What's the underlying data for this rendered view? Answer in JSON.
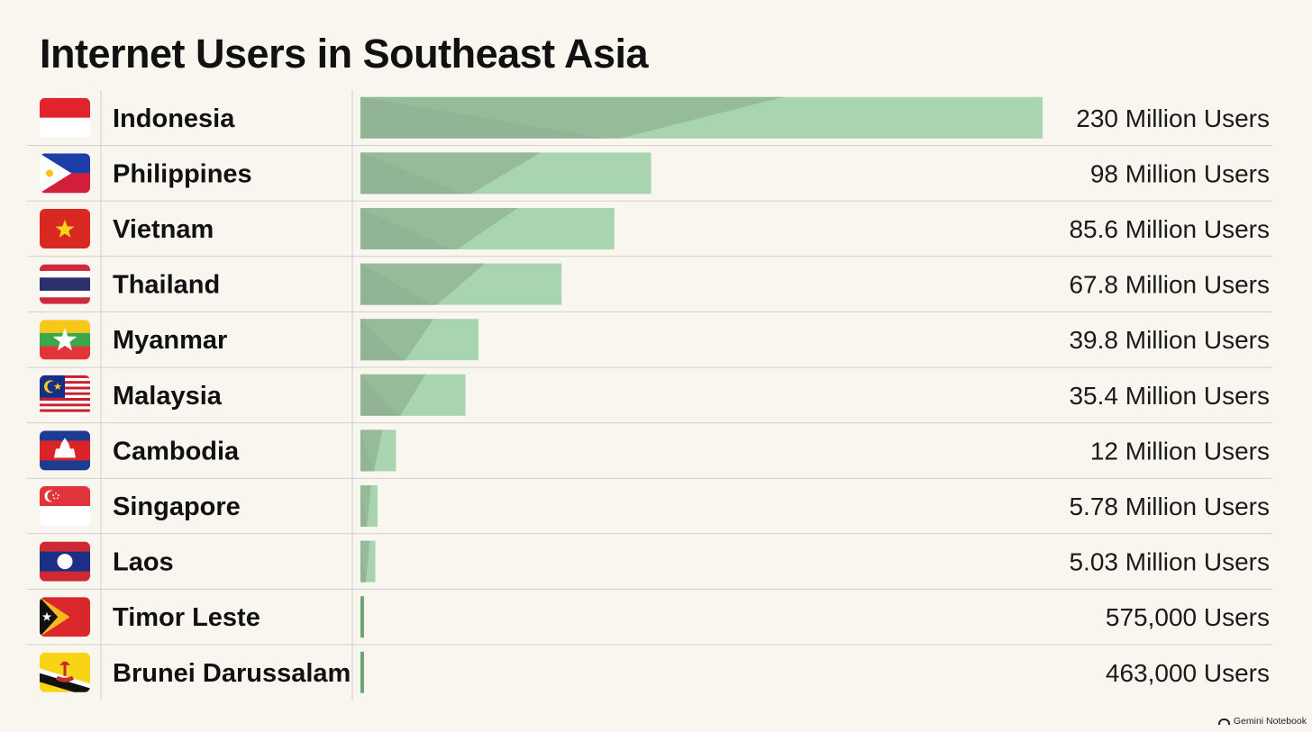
{
  "title": "Internet Users in Southeast Asia",
  "watermark": "Gemini Notebook",
  "colors": {
    "bar_dark": "#94b896",
    "bar_light": "#a8d4b0",
    "bar_solid": "#6aa774",
    "grid": "#cfcfca"
  },
  "chart_data": {
    "type": "bar",
    "orientation": "horizontal",
    "title": "Internet Users in Southeast Asia",
    "categories": [
      "Indonesia",
      "Philippines",
      "Vietnam",
      "Thailand",
      "Myanmar",
      "Malaysia",
      "Cambodia",
      "Singapore",
      "Laos",
      "Timor Leste",
      "Brunei Darussalam"
    ],
    "values": [
      230000000,
      98000000,
      85600000,
      67800000,
      39800000,
      35400000,
      12000000,
      5780000,
      5030000,
      575000,
      463000
    ],
    "value_labels": [
      "230 Million Users",
      "98 Million Users",
      "85.6 Million Users",
      "67.8 Million Users",
      "39.8 Million Users",
      "35.4 Million Users",
      "12 Million Users",
      "5.78 Million Users",
      "5.03 Million Users",
      "575,000 Users",
      "463,000 Users"
    ],
    "flag_icons": [
      "indonesia-flag-icon",
      "philippines-flag-icon",
      "vietnam-flag-icon",
      "thailand-flag-icon",
      "myanmar-flag-icon",
      "malaysia-flag-icon",
      "cambodia-flag-icon",
      "singapore-flag-icon",
      "laos-flag-icon",
      "timor-leste-flag-icon",
      "brunei-flag-icon"
    ],
    "xlim": [
      0,
      230000000
    ],
    "grid": true,
    "legend": "none"
  }
}
